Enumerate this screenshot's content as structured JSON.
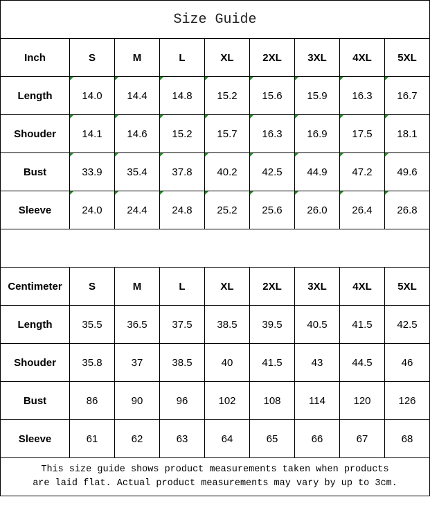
{
  "title": "Size Guide",
  "sizes": [
    "S",
    "M",
    "L",
    "XL",
    "2XL",
    "3XL",
    "4XL",
    "5XL"
  ],
  "inch": {
    "unit_label": "Inch",
    "rows": [
      {
        "label": "Length",
        "values": [
          "14.0",
          "14.4",
          "14.8",
          "15.2",
          "15.6",
          "15.9",
          "16.3",
          "16.7"
        ]
      },
      {
        "label": "Shouder",
        "values": [
          "14.1",
          "14.6",
          "15.2",
          "15.7",
          "16.3",
          "16.9",
          "17.5",
          "18.1"
        ]
      },
      {
        "label": "Bust",
        "values": [
          "33.9",
          "35.4",
          "37.8",
          "40.2",
          "42.5",
          "44.9",
          "47.2",
          "49.6"
        ]
      },
      {
        "label": "Sleeve",
        "values": [
          "24.0",
          "24.4",
          "24.8",
          "25.2",
          "25.6",
          "26.0",
          "26.4",
          "26.8"
        ]
      }
    ]
  },
  "cm": {
    "unit_label": "Centimeter",
    "rows": [
      {
        "label": "Length",
        "values": [
          "35.5",
          "36.5",
          "37.5",
          "38.5",
          "39.5",
          "40.5",
          "41.5",
          "42.5"
        ]
      },
      {
        "label": "Shouder",
        "values": [
          "35.8",
          "37",
          "38.5",
          "40",
          "41.5",
          "43",
          "44.5",
          "46"
        ]
      },
      {
        "label": "Bust",
        "values": [
          "86",
          "90",
          "96",
          "102",
          "108",
          "114",
          "120",
          "126"
        ]
      },
      {
        "label": "Sleeve",
        "values": [
          "61",
          "62",
          "63",
          "64",
          "65",
          "66",
          "67",
          "68"
        ]
      }
    ]
  },
  "footer": {
    "line1": "This size guide shows product measurements taken when products",
    "line2": "are laid flat. Actual product measurements may vary by up to 3cm."
  },
  "colors": {
    "cell_marker": "#1a8a1a",
    "border": "#000000"
  }
}
